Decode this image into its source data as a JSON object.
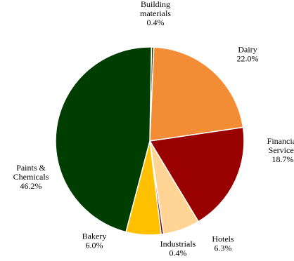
{
  "chart_data": {
    "type": "pie",
    "title": "",
    "legend": "none",
    "slices": [
      {
        "label": [
          "Building",
          "materials"
        ],
        "value": 0.4,
        "display": "0.4%",
        "color": "#3a3a00"
      },
      {
        "label": [
          "Dairy"
        ],
        "value": 22.0,
        "display": "22.0%",
        "color": "#f28c35"
      },
      {
        "label": [
          "Financial",
          "Services"
        ],
        "value": 18.7,
        "display": "18.7%",
        "color": "#990000"
      },
      {
        "label": [
          "Hotels"
        ],
        "value": 6.3,
        "display": "6.3%",
        "color": "#ffd494"
      },
      {
        "label": [
          "Industrials"
        ],
        "value": 0.4,
        "display": "0.4%",
        "color": "#7b0000"
      },
      {
        "label": [
          "Bakery"
        ],
        "value": 6.0,
        "display": "6.0%",
        "color": "#ffc000"
      },
      {
        "label": [
          "Paints &",
          "Chemicals"
        ],
        "value": 46.2,
        "display": "46.2%",
        "color": "#003d00"
      }
    ]
  }
}
